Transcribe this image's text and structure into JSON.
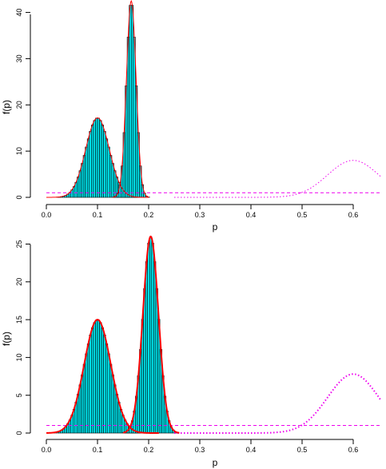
{
  "colors": {
    "histogram_fill": "#00e5ee",
    "histogram_stroke": "#000000",
    "density_curve": "#ff0000",
    "reference_line": "#ee00ee"
  },
  "chart_data": [
    {
      "type": "bar",
      "xlabel": "p",
      "ylabel": "f(p)",
      "xlim": [
        0,
        0.65
      ],
      "ylim": [
        0,
        42
      ],
      "xticks": [
        "0.0",
        "0.1",
        "0.2",
        "0.3",
        "0.4",
        "0.5",
        "0.6"
      ],
      "yticks": [
        "0",
        "10",
        "20",
        "30",
        "40"
      ],
      "grid": false,
      "series": [
        {
          "kind": "histogram",
          "component": 1,
          "mode": 0.1,
          "peak": 17.2,
          "sd": 0.023,
          "bin_width": 0.004,
          "range": [
            0.0,
            0.2
          ]
        },
        {
          "kind": "histogram",
          "component": 2,
          "mode": 0.166,
          "peak": 42.5,
          "sd": 0.0094,
          "bin_width": 0.004,
          "range": [
            0.13,
            0.2
          ]
        },
        {
          "kind": "density",
          "style": "solid",
          "component": 1,
          "mode": 0.1,
          "peak": 17.2,
          "sd": 0.023,
          "range": [
            0.0,
            0.2
          ]
        },
        {
          "kind": "density",
          "style": "solid",
          "component": 2,
          "mode": 0.166,
          "peak": 42.5,
          "sd": 0.0094,
          "range": [
            0.13,
            0.2
          ]
        },
        {
          "kind": "prior",
          "style": "dotted",
          "mode": 0.6,
          "peak": 8.0,
          "sd": 0.05,
          "range": [
            0.25,
            0.655
          ]
        },
        {
          "kind": "reference",
          "style": "dashed",
          "y": 1.0,
          "range": [
            0.0,
            0.655
          ]
        }
      ]
    },
    {
      "type": "bar",
      "xlabel": "p",
      "ylabel": "f(p)",
      "xlim": [
        0,
        0.65
      ],
      "ylim": [
        0,
        26
      ],
      "xticks": [
        "0.0",
        "0.1",
        "0.2",
        "0.3",
        "0.4",
        "0.5",
        "0.6"
      ],
      "yticks": [
        "0",
        "5",
        "10",
        "15",
        "20",
        "25"
      ],
      "grid": false,
      "series": [
        {
          "kind": "histogram",
          "component": 1,
          "mode": 0.1,
          "peak": 15.0,
          "sd": 0.026,
          "bin_width": 0.004,
          "range": [
            0.0,
            0.22
          ]
        },
        {
          "kind": "histogram",
          "component": 2,
          "mode": 0.204,
          "peak": 26.0,
          "sd": 0.0153,
          "bin_width": 0.004,
          "range": [
            0.15,
            0.26
          ]
        },
        {
          "kind": "density",
          "style": "solid",
          "component": 1,
          "mode": 0.1,
          "peak": 15.0,
          "sd": 0.026,
          "range": [
            0.0,
            0.22
          ]
        },
        {
          "kind": "density",
          "style": "solid",
          "component": 2,
          "mode": 0.204,
          "peak": 26.0,
          "sd": 0.0153,
          "range": [
            0.15,
            0.26
          ]
        },
        {
          "kind": "prior",
          "style": "dotted",
          "mode": 0.6,
          "peak": 7.8,
          "sd": 0.05,
          "range": [
            0.25,
            0.655
          ]
        },
        {
          "kind": "reference",
          "style": "dashed",
          "y": 1.0,
          "range": [
            0.0,
            0.655
          ]
        }
      ]
    }
  ]
}
